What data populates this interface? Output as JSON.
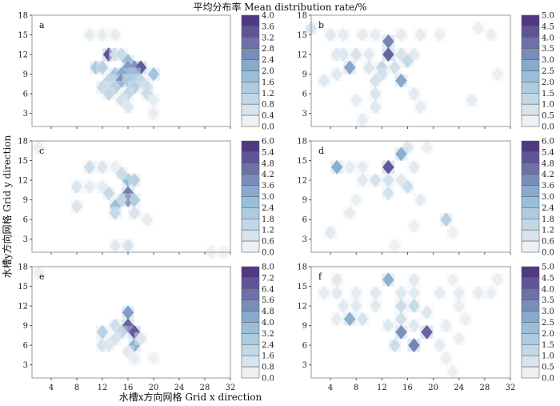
{
  "figure": {
    "title": "平均分布率 Mean distribution rate/%",
    "xlabel": "水槽x方向网格 Grid x direction",
    "ylabel": "水槽y方向网格 Grid y direction"
  },
  "colors": {
    "low": "#f7f7f7",
    "mid": "#8fb8d6",
    "high": "#4a2a7a",
    "frame": "#999999"
  },
  "chart_data": [
    {
      "type": "heatmap",
      "panel": "a",
      "x_ticks": [
        4,
        8,
        12,
        16,
        20,
        24,
        28,
        32
      ],
      "y_ticks": [
        3,
        6,
        9,
        12,
        15,
        18
      ],
      "xlim": [
        1,
        32
      ],
      "ylim": [
        1,
        18
      ],
      "colorbar": {
        "ticks": [
          "4.0",
          "3.6",
          "3.2",
          "2.8",
          "2.4",
          "2.0",
          "1.6",
          "1.2",
          "0.8",
          "0.4",
          "0.0"
        ],
        "max": 4.0
      },
      "cells": [
        {
          "x": 10,
          "y": 15,
          "v": 0.3
        },
        {
          "x": 12,
          "y": 15,
          "v": 0.3
        },
        {
          "x": 14,
          "y": 15,
          "v": 0.3
        },
        {
          "x": 13,
          "y": 12,
          "v": 3.4
        },
        {
          "x": 14,
          "y": 12,
          "v": 0.8
        },
        {
          "x": 15,
          "y": 12,
          "v": 0.9
        },
        {
          "x": 11,
          "y": 10,
          "v": 1.4
        },
        {
          "x": 12,
          "y": 10,
          "v": 1.2
        },
        {
          "x": 16,
          "y": 11,
          "v": 1.8
        },
        {
          "x": 17,
          "y": 10,
          "v": 3.2
        },
        {
          "x": 18,
          "y": 10,
          "v": 3.3
        },
        {
          "x": 16,
          "y": 10,
          "v": 2.4
        },
        {
          "x": 14,
          "y": 9,
          "v": 1.6
        },
        {
          "x": 15,
          "y": 9,
          "v": 2.2
        },
        {
          "x": 17,
          "y": 9,
          "v": 1.8
        },
        {
          "x": 20,
          "y": 9,
          "v": 1.6
        },
        {
          "x": 13,
          "y": 8,
          "v": 1.1
        },
        {
          "x": 15,
          "y": 8,
          "v": 2.6
        },
        {
          "x": 16,
          "y": 8,
          "v": 1.4
        },
        {
          "x": 18,
          "y": 8,
          "v": 1.0
        },
        {
          "x": 12,
          "y": 7,
          "v": 0.9
        },
        {
          "x": 14,
          "y": 7,
          "v": 1.2
        },
        {
          "x": 17,
          "y": 7,
          "v": 1.2
        },
        {
          "x": 19,
          "y": 7,
          "v": 0.8
        },
        {
          "x": 13,
          "y": 6,
          "v": 1.0
        },
        {
          "x": 16,
          "y": 6,
          "v": 1.0
        },
        {
          "x": 19,
          "y": 6,
          "v": 0.9
        },
        {
          "x": 15,
          "y": 5,
          "v": 0.7
        },
        {
          "x": 16,
          "y": 4,
          "v": 0.5
        },
        {
          "x": 20,
          "y": 5,
          "v": 0.3
        },
        {
          "x": 20,
          "y": 3,
          "v": 0.3
        }
      ]
    },
    {
      "type": "heatmap",
      "panel": "b",
      "x_ticks": [
        4,
        8,
        12,
        16,
        20,
        24,
        28,
        32
      ],
      "y_ticks": [
        3,
        6,
        9,
        12,
        15,
        18
      ],
      "xlim": [
        1,
        32
      ],
      "ylim": [
        1,
        18
      ],
      "colorbar": {
        "ticks": [
          "5.0",
          "4.5",
          "4.0",
          "3.5",
          "3.0",
          "2.5",
          "2.0",
          "1.5",
          "1.0",
          "0.5",
          "0.0"
        ],
        "max": 5.0
      },
      "cells": [
        {
          "x": 1,
          "y": 16,
          "v": 0.8
        },
        {
          "x": 4,
          "y": 15,
          "v": 0.5
        },
        {
          "x": 6,
          "y": 15,
          "v": 0.4
        },
        {
          "x": 9,
          "y": 15,
          "v": 0.4
        },
        {
          "x": 11,
          "y": 15,
          "v": 0.4
        },
        {
          "x": 13,
          "y": 14,
          "v": 3.4
        },
        {
          "x": 15,
          "y": 15,
          "v": 0.4
        },
        {
          "x": 18,
          "y": 15,
          "v": 0.4
        },
        {
          "x": 21,
          "y": 15,
          "v": 0.3
        },
        {
          "x": 27,
          "y": 16,
          "v": 0.3
        },
        {
          "x": 29,
          "y": 15,
          "v": 0.3
        },
        {
          "x": 5,
          "y": 12,
          "v": 0.6
        },
        {
          "x": 6,
          "y": 12,
          "v": 0.6
        },
        {
          "x": 8,
          "y": 12,
          "v": 0.8
        },
        {
          "x": 10,
          "y": 12,
          "v": 0.5
        },
        {
          "x": 13,
          "y": 12,
          "v": 4.0
        },
        {
          "x": 15,
          "y": 12,
          "v": 0.8
        },
        {
          "x": 17,
          "y": 12,
          "v": 0.5
        },
        {
          "x": 16,
          "y": 11,
          "v": 1.2
        },
        {
          "x": 7,
          "y": 10,
          "v": 2.8
        },
        {
          "x": 10,
          "y": 10,
          "v": 0.7
        },
        {
          "x": 12,
          "y": 10,
          "v": 1.3
        },
        {
          "x": 14,
          "y": 10,
          "v": 0.9
        },
        {
          "x": 3,
          "y": 8,
          "v": 0.6
        },
        {
          "x": 5,
          "y": 9,
          "v": 0.5
        },
        {
          "x": 12,
          "y": 9,
          "v": 0.9
        },
        {
          "x": 15,
          "y": 8,
          "v": 2.8
        },
        {
          "x": 11,
          "y": 8,
          "v": 0.8
        },
        {
          "x": 11,
          "y": 6,
          "v": 0.7
        },
        {
          "x": 11,
          "y": 4,
          "v": 0.6
        },
        {
          "x": 8,
          "y": 5,
          "v": 0.4
        },
        {
          "x": 17,
          "y": 6,
          "v": 0.5
        },
        {
          "x": 18,
          "y": 4,
          "v": 0.4
        },
        {
          "x": 9,
          "y": 2,
          "v": 0.4
        },
        {
          "x": 26,
          "y": 5,
          "v": 0.4
        },
        {
          "x": 30,
          "y": 9,
          "v": 0.3
        }
      ]
    },
    {
      "type": "heatmap",
      "panel": "c",
      "x_ticks": [
        4,
        8,
        12,
        16,
        20,
        24,
        28,
        32
      ],
      "y_ticks": [
        3,
        6,
        9,
        12,
        15,
        18
      ],
      "xlim": [
        1,
        32
      ],
      "ylim": [
        1,
        18
      ],
      "colorbar": {
        "ticks": [
          "6.0",
          "5.4",
          "4.8",
          "4.2",
          "3.6",
          "3.0",
          "2.4",
          "1.8",
          "1.2",
          "0.6",
          "0.0"
        ],
        "max": 6.0
      },
      "cells": [
        {
          "x": 2,
          "y": 17,
          "v": 0.4
        },
        {
          "x": 10,
          "y": 14,
          "v": 1.2
        },
        {
          "x": 12,
          "y": 14,
          "v": 0.8
        },
        {
          "x": 14,
          "y": 14,
          "v": 0.4
        },
        {
          "x": 16,
          "y": 12,
          "v": 2.8
        },
        {
          "x": 15,
          "y": 13,
          "v": 1.3
        },
        {
          "x": 17,
          "y": 12,
          "v": 1.8
        },
        {
          "x": 8,
          "y": 11,
          "v": 0.8
        },
        {
          "x": 10,
          "y": 11,
          "v": 0.5
        },
        {
          "x": 12,
          "y": 11,
          "v": 0.5
        },
        {
          "x": 13,
          "y": 10,
          "v": 1.4
        },
        {
          "x": 16,
          "y": 10,
          "v": 4.2
        },
        {
          "x": 16,
          "y": 9,
          "v": 5.0
        },
        {
          "x": 17,
          "y": 9,
          "v": 2.0
        },
        {
          "x": 15,
          "y": 9,
          "v": 1.6
        },
        {
          "x": 14,
          "y": 8,
          "v": 2.6
        },
        {
          "x": 14,
          "y": 7,
          "v": 1.4
        },
        {
          "x": 8,
          "y": 8,
          "v": 0.8
        },
        {
          "x": 17,
          "y": 7,
          "v": 0.9
        },
        {
          "x": 19,
          "y": 6,
          "v": 0.5
        },
        {
          "x": 14,
          "y": 2,
          "v": 0.6
        },
        {
          "x": 16,
          "y": 2,
          "v": 0.9
        },
        {
          "x": 29,
          "y": 1,
          "v": 0.3
        },
        {
          "x": 31,
          "y": 1,
          "v": 0.3
        }
      ]
    },
    {
      "type": "heatmap",
      "panel": "d",
      "x_ticks": [
        4,
        8,
        12,
        16,
        20,
        24,
        28,
        32
      ],
      "y_ticks": [
        3,
        6,
        9,
        12,
        15,
        18
      ],
      "xlim": [
        1,
        32
      ],
      "ylim": [
        1,
        18
      ],
      "colorbar": {
        "ticks": [
          "6.0",
          "5.4",
          "4.8",
          "4.2",
          "3.6",
          "3.0",
          "2.4",
          "1.8",
          "1.2",
          "0.6",
          "0.0"
        ],
        "max": 6.0
      },
      "cells": [
        {
          "x": 16,
          "y": 17,
          "v": 0.8
        },
        {
          "x": 19,
          "y": 17,
          "v": 0.4
        },
        {
          "x": 15,
          "y": 16,
          "v": 3.2
        },
        {
          "x": 13,
          "y": 14,
          "v": 5.0
        },
        {
          "x": 5,
          "y": 14,
          "v": 3.2
        },
        {
          "x": 7,
          "y": 14,
          "v": 0.5
        },
        {
          "x": 9,
          "y": 14,
          "v": 0.5
        },
        {
          "x": 17,
          "y": 14,
          "v": 0.6
        },
        {
          "x": 9,
          "y": 12,
          "v": 0.6
        },
        {
          "x": 11,
          "y": 12,
          "v": 1.0
        },
        {
          "x": 13,
          "y": 12,
          "v": 1.0
        },
        {
          "x": 15,
          "y": 12,
          "v": 0.6
        },
        {
          "x": 16,
          "y": 11,
          "v": 1.2
        },
        {
          "x": 13,
          "y": 10,
          "v": 1.0
        },
        {
          "x": 18,
          "y": 9,
          "v": 0.5
        },
        {
          "x": 8,
          "y": 9,
          "v": 0.4
        },
        {
          "x": 7,
          "y": 7,
          "v": 0.5
        },
        {
          "x": 22,
          "y": 6,
          "v": 1.8
        },
        {
          "x": 17,
          "y": 5,
          "v": 0.4
        },
        {
          "x": 4,
          "y": 4,
          "v": 0.6
        },
        {
          "x": 23,
          "y": 4,
          "v": 0.3
        },
        {
          "x": 14,
          "y": 2,
          "v": 0.3
        }
      ]
    },
    {
      "type": "heatmap",
      "panel": "e",
      "x_ticks": [
        4,
        8,
        12,
        16,
        20,
        24,
        28,
        32
      ],
      "y_ticks": [
        3,
        6,
        9,
        12,
        15,
        18
      ],
      "xlim": [
        1,
        32
      ],
      "ylim": [
        1,
        18
      ],
      "colorbar": {
        "ticks": [
          "8.0",
          "7.2",
          "6.4",
          "5.6",
          "4.8",
          "4.0",
          "3.2",
          "2.4",
          "1.6",
          "0.8",
          "0.0"
        ],
        "max": 8.0
      },
      "cells": [
        {
          "x": 2,
          "y": 17,
          "v": 0.5
        },
        {
          "x": 16,
          "y": 11,
          "v": 4.8
        },
        {
          "x": 14,
          "y": 9,
          "v": 1.6
        },
        {
          "x": 16,
          "y": 9,
          "v": 6.4
        },
        {
          "x": 17,
          "y": 8,
          "v": 6.6
        },
        {
          "x": 15,
          "y": 8,
          "v": 2.0
        },
        {
          "x": 12,
          "y": 8,
          "v": 2.4
        },
        {
          "x": 12,
          "y": 6,
          "v": 1.4
        },
        {
          "x": 13,
          "y": 6,
          "v": 1.0
        },
        {
          "x": 14,
          "y": 7,
          "v": 1.2
        },
        {
          "x": 17,
          "y": 6,
          "v": 4.2
        },
        {
          "x": 18,
          "y": 7,
          "v": 1.0
        },
        {
          "x": 16,
          "y": 5,
          "v": 0.8
        },
        {
          "x": 17,
          "y": 4,
          "v": 0.6
        },
        {
          "x": 20,
          "y": 4,
          "v": 0.3
        }
      ]
    },
    {
      "type": "heatmap",
      "panel": "f",
      "x_ticks": [
        4,
        8,
        12,
        16,
        20,
        24,
        28,
        32
      ],
      "y_ticks": [
        3,
        6,
        9,
        12,
        15,
        18
      ],
      "xlim": [
        1,
        32
      ],
      "ylim": [
        1,
        18
      ],
      "colorbar": {
        "ticks": [
          "5.0",
          "4.5",
          "4.0",
          "3.5",
          "3.0",
          "2.5",
          "2.0",
          "1.5",
          "1.0",
          "0.5",
          "0.0"
        ],
        "max": 5.0
      },
      "cells": [
        {
          "x": 5,
          "y": 16,
          "v": 0.5
        },
        {
          "x": 13,
          "y": 16,
          "v": 2.6
        },
        {
          "x": 17,
          "y": 16,
          "v": 0.5
        },
        {
          "x": 23,
          "y": 16,
          "v": 0.3
        },
        {
          "x": 30,
          "y": 16,
          "v": 0.3
        },
        {
          "x": 3,
          "y": 14,
          "v": 0.4
        },
        {
          "x": 5,
          "y": 14,
          "v": 0.5
        },
        {
          "x": 8,
          "y": 14,
          "v": 0.4
        },
        {
          "x": 11,
          "y": 14,
          "v": 0.5
        },
        {
          "x": 15,
          "y": 14,
          "v": 0.6
        },
        {
          "x": 17,
          "y": 14,
          "v": 0.5
        },
        {
          "x": 21,
          "y": 14,
          "v": 0.4
        },
        {
          "x": 24,
          "y": 14,
          "v": 0.4
        },
        {
          "x": 27,
          "y": 14,
          "v": 0.4
        },
        {
          "x": 29,
          "y": 14,
          "v": 0.3
        },
        {
          "x": 6,
          "y": 12,
          "v": 0.5
        },
        {
          "x": 8,
          "y": 12,
          "v": 0.5
        },
        {
          "x": 11,
          "y": 12,
          "v": 0.5
        },
        {
          "x": 15,
          "y": 12,
          "v": 1.0
        },
        {
          "x": 17,
          "y": 12,
          "v": 1.2
        },
        {
          "x": 19,
          "y": 11,
          "v": 0.6
        },
        {
          "x": 24,
          "y": 12,
          "v": 0.3
        },
        {
          "x": 5,
          "y": 10,
          "v": 0.4
        },
        {
          "x": 7,
          "y": 10,
          "v": 2.6
        },
        {
          "x": 9,
          "y": 10,
          "v": 0.8
        },
        {
          "x": 13,
          "y": 9,
          "v": 0.6
        },
        {
          "x": 15,
          "y": 10,
          "v": 0.9
        },
        {
          "x": 15,
          "y": 8,
          "v": 3.2
        },
        {
          "x": 17,
          "y": 9,
          "v": 0.6
        },
        {
          "x": 19,
          "y": 8,
          "v": 4.0
        },
        {
          "x": 22,
          "y": 9,
          "v": 0.4
        },
        {
          "x": 25,
          "y": 10,
          "v": 0.3
        },
        {
          "x": 14,
          "y": 6,
          "v": 1.0
        },
        {
          "x": 17,
          "y": 6,
          "v": 3.4
        },
        {
          "x": 21,
          "y": 6,
          "v": 0.4
        },
        {
          "x": 24,
          "y": 7,
          "v": 0.3
        },
        {
          "x": 22,
          "y": 4,
          "v": 0.3
        },
        {
          "x": 23,
          "y": 2,
          "v": 0.3
        }
      ]
    }
  ]
}
